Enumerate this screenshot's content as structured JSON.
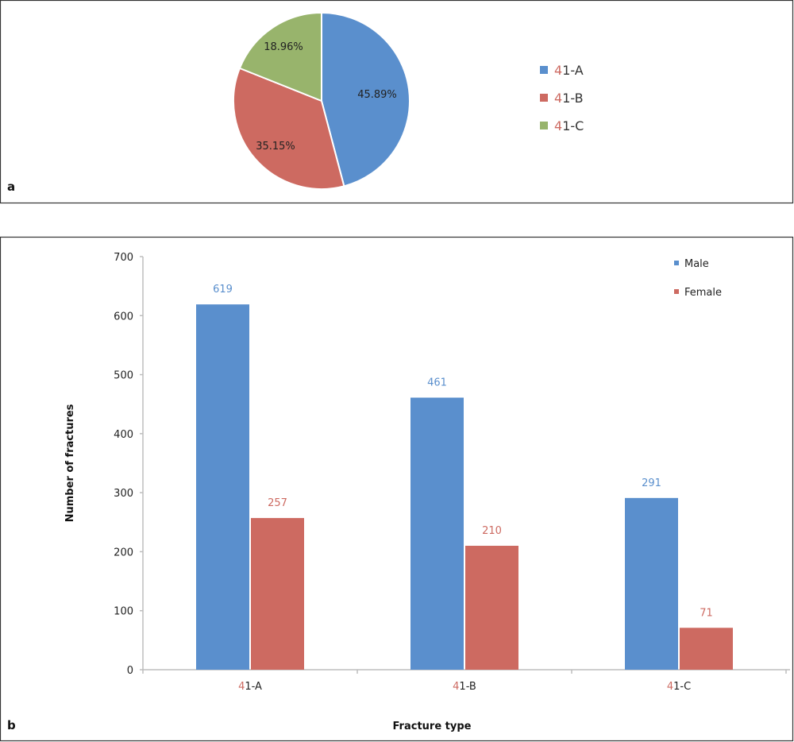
{
  "chart_data": [
    {
      "type": "pie",
      "panel_label": "a",
      "categories": [
        "41-A",
        "41-B",
        "41-C"
      ],
      "values": [
        45.89,
        35.15,
        18.96
      ],
      "data_labels": [
        "45.89%",
        "35.15%",
        "18.96%"
      ],
      "colors": [
        "#5a8fcd",
        "#cd6a61",
        "#98b46c"
      ],
      "legend_position": "right"
    },
    {
      "type": "bar",
      "panel_label": "b",
      "categories": [
        "41-A",
        "41-B",
        "41-C"
      ],
      "series": [
        {
          "name": "Male",
          "values": [
            619,
            461,
            291
          ],
          "color": "#5a8fcd"
        },
        {
          "name": "Female",
          "values": [
            257,
            210,
            71
          ],
          "color": "#cd6a61"
        }
      ],
      "xlabel": "Fracture type",
      "ylabel": "Number of fractures",
      "ylim": [
        0,
        700
      ],
      "yticks": [
        0,
        100,
        200,
        300,
        400,
        500,
        600,
        700
      ],
      "legend_position": "top-right",
      "grid": false
    }
  ],
  "accent_digit_color": "#cd6a61"
}
